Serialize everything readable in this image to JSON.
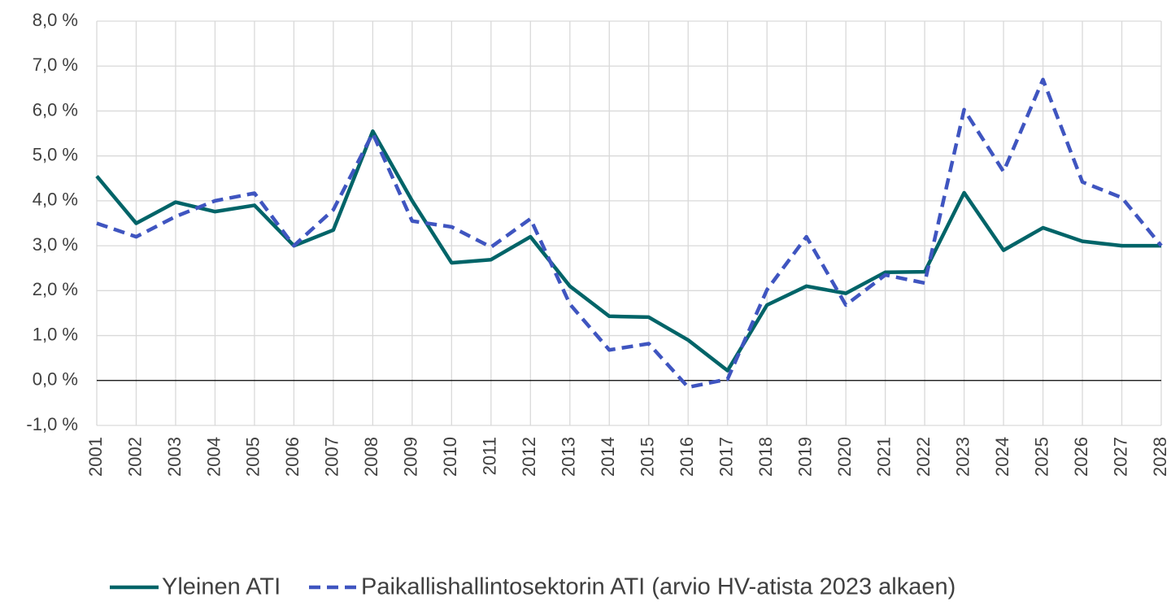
{
  "chart_data": {
    "type": "line",
    "categories": [
      "2001",
      "2002",
      "2003",
      "2004",
      "2005",
      "2006",
      "2007",
      "2008",
      "2009",
      "2010",
      "2011",
      "2012",
      "2013",
      "2014",
      "2015",
      "2016",
      "2017",
      "2018",
      "2019",
      "2020",
      "2021",
      "2022",
      "2023",
      "2024",
      "2025",
      "2026",
      "2027",
      "2028"
    ],
    "series": [
      {
        "name": "Yleinen ATI",
        "color": "#006468",
        "style": "solid",
        "values": [
          4.55,
          3.5,
          3.97,
          3.76,
          3.9,
          3.0,
          3.35,
          5.55,
          4.0,
          2.62,
          2.69,
          3.2,
          2.1,
          1.43,
          1.41,
          0.9,
          0.22,
          1.68,
          2.1,
          1.94,
          2.41,
          2.42,
          4.18,
          2.9,
          3.4,
          3.1,
          3.0,
          3.0
        ]
      },
      {
        "name": "Paikallishallintosektorin ATI (arvio HV-atista 2023 alkaen)",
        "color": "#3f55c0",
        "style": "dashed",
        "values": [
          3.5,
          3.2,
          3.65,
          4.0,
          4.17,
          3.0,
          3.8,
          5.5,
          3.55,
          3.42,
          2.97,
          3.6,
          1.7,
          0.68,
          0.82,
          -0.15,
          0.03,
          2.02,
          3.2,
          1.68,
          2.35,
          2.17,
          6.03,
          4.65,
          6.7,
          4.42,
          4.07,
          3.0
        ]
      }
    ],
    "ylim": [
      -1,
      8
    ],
    "yticks": [
      {
        "value": -1,
        "label": "-1,0 %"
      },
      {
        "value": 0,
        "label": "0,0 %"
      },
      {
        "value": 1,
        "label": "1,0 %"
      },
      {
        "value": 2,
        "label": "2,0 %"
      },
      {
        "value": 3,
        "label": "3,0 %"
      },
      {
        "value": 4,
        "label": "4,0 %"
      },
      {
        "value": 5,
        "label": "5,0 %"
      },
      {
        "value": 6,
        "label": "6,0 %"
      },
      {
        "value": 7,
        "label": "7,0 %"
      },
      {
        "value": 8,
        "label": "8,0 %"
      }
    ],
    "grid": true,
    "legend": "bottom"
  }
}
